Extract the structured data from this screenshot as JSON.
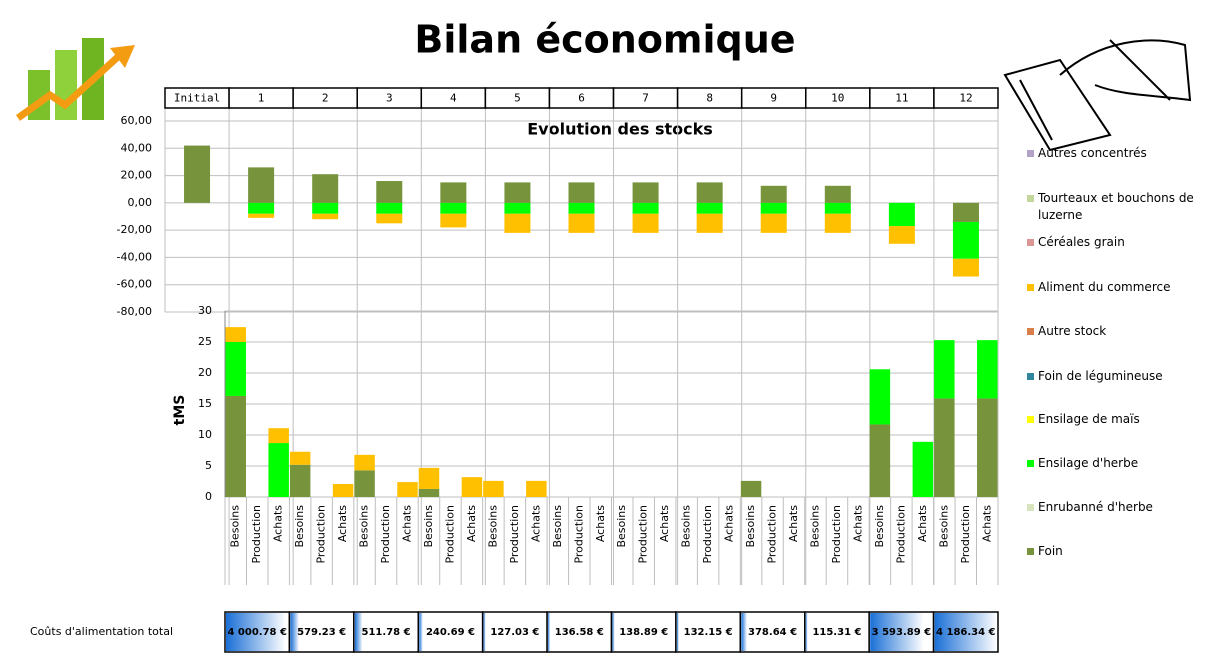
{
  "title": "Bilan économique",
  "chart_data": [
    {
      "type": "bar",
      "stacked": true,
      "title": "Evolution des stocks",
      "categories": [
        "Initial",
        "1",
        "2",
        "3",
        "4",
        "5",
        "6",
        "7",
        "8",
        "9",
        "10",
        "11",
        "12"
      ],
      "series": [
        {
          "color": "#77933c",
          "values": [
            42,
            26,
            21,
            16,
            15,
            15,
            15,
            15,
            15,
            12.5,
            12.5,
            0,
            -14
          ]
        },
        {
          "color": "#00ff00",
          "values": [
            0,
            -8,
            -8,
            -8,
            -8,
            -8,
            -8,
            -8,
            -8,
            -8,
            -8,
            -17,
            -27
          ]
        },
        {
          "color": "#ffc000",
          "values": [
            0,
            -3,
            -4,
            -7,
            -10,
            -14,
            -14,
            -14,
            -14,
            -14,
            -14,
            -13,
            -13
          ]
        }
      ],
      "ylim": [
        -80,
        60
      ],
      "yticks": [
        {
          "value": -80,
          "label": "-80,00"
        },
        {
          "value": -60,
          "label": "-60,00"
        },
        {
          "value": -40,
          "label": "-40,00"
        },
        {
          "value": -20,
          "label": "-20,00"
        },
        {
          "value": 0,
          "label": "0,00"
        },
        {
          "value": 20,
          "label": "20,00"
        },
        {
          "value": 40,
          "label": "40,00"
        },
        {
          "value": 60,
          "label": "60,00"
        }
      ],
      "grid": true
    },
    {
      "type": "bar",
      "stacked": true,
      "y_label": "tMS",
      "categories": [
        "Besoins",
        "Production",
        "Achats",
        "Besoins",
        "Production",
        "Achats",
        "Besoins",
        "Production",
        "Achats",
        "Besoins",
        "Production",
        "Achats",
        "Besoins",
        "Production",
        "Achats",
        "Besoins",
        "Production",
        "Achats",
        "Besoins",
        "Production",
        "Achats",
        "Besoins",
        "Production",
        "Achats",
        "Besoins",
        "Production",
        "Achats",
        "Besoins",
        "Production",
        "Achats",
        "Besoins",
        "Production",
        "Achats",
        "Besoins",
        "Production",
        "Achats"
      ],
      "series": [
        {
          "color": "#77933c",
          "values": [
            16.3,
            0,
            0,
            5.2,
            0,
            0,
            4.3,
            0,
            0,
            1.3,
            0,
            0,
            0,
            0,
            0,
            0,
            0,
            0,
            0,
            0,
            0,
            0,
            0,
            0,
            2.6,
            0,
            0,
            0,
            0,
            0,
            11.7,
            0,
            0,
            15.9,
            0,
            15.9
          ]
        },
        {
          "color": "#00ff00",
          "values": [
            8.7,
            0,
            8.7,
            0,
            0,
            0,
            0,
            0,
            0,
            0,
            0,
            0,
            0,
            0,
            0,
            0,
            0,
            0,
            0,
            0,
            0,
            0,
            0,
            0,
            0,
            0,
            0,
            0,
            0,
            0,
            8.9,
            0,
            8.9,
            9.4,
            0,
            9.4
          ]
        },
        {
          "color": "#ffc000",
          "values": [
            2.4,
            0,
            2.4,
            2.1,
            0,
            2.1,
            2.5,
            0,
            2.4,
            3.4,
            0,
            3.2,
            2.6,
            0,
            2.6,
            0,
            0,
            0,
            0,
            0,
            0,
            0,
            0,
            0,
            0,
            0,
            0,
            0,
            0,
            0,
            0,
            0,
            0,
            0,
            0,
            0
          ]
        }
      ],
      "ylim": [
        0,
        30
      ],
      "yticks": [
        0,
        5,
        10,
        15,
        20,
        25,
        30
      ],
      "grid": true
    }
  ],
  "legend": [
    {
      "name": "Autres concentrés",
      "color": "#b3a2c7"
    },
    {
      "name": "Tourteaux et bouchons de luzerne",
      "color": "#c3d69b"
    },
    {
      "name": "Céréales grain",
      "color": "#d99694"
    },
    {
      "name": "Aliment du commerce",
      "color": "#ffc000"
    },
    {
      "name": "Autre stock",
      "color": "#d9804a"
    },
    {
      "name": "Foin de légumineuse",
      "color": "#31859c"
    },
    {
      "name": "Ensilage de maïs",
      "color": "#ffff00"
    },
    {
      "name": "Ensilage d'herbe",
      "color": "#00ff00"
    },
    {
      "name": "Enrubanné d'herbe",
      "color": "#d7e4bd"
    },
    {
      "name": "Foin",
      "color": "#77933c"
    }
  ],
  "costs": {
    "label": "Coûts d'alimentation total",
    "values": [
      4000.78,
      579.23,
      511.78,
      240.69,
      127.03,
      136.58,
      138.89,
      132.15,
      378.64,
      115.31,
      3593.89,
      4186.34
    ],
    "value_labels": [
      "4 000.78 €",
      "579.23 €",
      "511.78 €",
      "240.69 €",
      "127.03 €",
      "136.58 €",
      "138.89 €",
      "132.15 €",
      "378.64 €",
      "115.31 €",
      "3 593.89 €",
      "4 186.34 €"
    ]
  }
}
